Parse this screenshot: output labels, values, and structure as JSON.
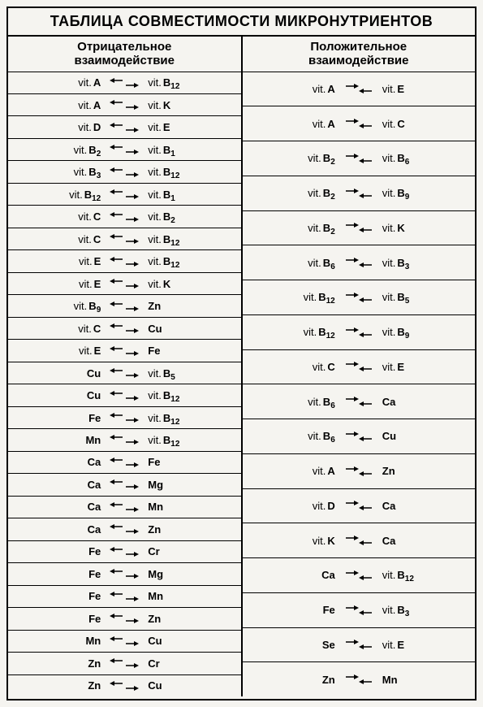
{
  "title": "ТАБЛИЦА СОВМЕСТИМОСТИ МИКРОНУТРИЕНТОВ",
  "colors": {
    "background": "#f5f4f0",
    "border": "#000000",
    "text": "#000000"
  },
  "columns": {
    "negative": {
      "header_line1": "Отрицательное",
      "header_line2": "взаимодействие",
      "arrow_type": "diverge",
      "rows": [
        {
          "left_prefix": "vit.",
          "left_main": "A",
          "left_sub": "",
          "right_prefix": "vit.",
          "right_main": "B",
          "right_sub": "12"
        },
        {
          "left_prefix": "vit.",
          "left_main": "A",
          "left_sub": "",
          "right_prefix": "vit.",
          "right_main": "K",
          "right_sub": ""
        },
        {
          "left_prefix": "vit.",
          "left_main": "D",
          "left_sub": "",
          "right_prefix": "vit.",
          "right_main": "E",
          "right_sub": ""
        },
        {
          "left_prefix": "vit.",
          "left_main": "B",
          "left_sub": "2",
          "right_prefix": "vit.",
          "right_main": "B",
          "right_sub": "1"
        },
        {
          "left_prefix": "vit.",
          "left_main": "B",
          "left_sub": "3",
          "right_prefix": "vit.",
          "right_main": "B",
          "right_sub": "12"
        },
        {
          "left_prefix": "vit.",
          "left_main": "B",
          "left_sub": "12",
          "right_prefix": "vit.",
          "right_main": "B",
          "right_sub": "1"
        },
        {
          "left_prefix": "vit.",
          "left_main": "C",
          "left_sub": "",
          "right_prefix": "vit.",
          "right_main": "B",
          "right_sub": "2"
        },
        {
          "left_prefix": "vit.",
          "left_main": "C",
          "left_sub": "",
          "right_prefix": "vit.",
          "right_main": "B",
          "right_sub": "12"
        },
        {
          "left_prefix": "vit.",
          "left_main": "E",
          "left_sub": "",
          "right_prefix": "vit.",
          "right_main": "B",
          "right_sub": "12"
        },
        {
          "left_prefix": "vit.",
          "left_main": "E",
          "left_sub": "",
          "right_prefix": "vit.",
          "right_main": "K",
          "right_sub": ""
        },
        {
          "left_prefix": "vit.",
          "left_main": "B",
          "left_sub": "9",
          "right_prefix": "",
          "right_main": "Zn",
          "right_sub": ""
        },
        {
          "left_prefix": "vit.",
          "left_main": "C",
          "left_sub": "",
          "right_prefix": "",
          "right_main": "Cu",
          "right_sub": ""
        },
        {
          "left_prefix": "vit.",
          "left_main": "E",
          "left_sub": "",
          "right_prefix": "",
          "right_main": "Fe",
          "right_sub": ""
        },
        {
          "left_prefix": "",
          "left_main": "Cu",
          "left_sub": "",
          "right_prefix": "vit.",
          "right_main": "B",
          "right_sub": "5"
        },
        {
          "left_prefix": "",
          "left_main": "Cu",
          "left_sub": "",
          "right_prefix": "vit.",
          "right_main": "B",
          "right_sub": "12"
        },
        {
          "left_prefix": "",
          "left_main": "Fe",
          "left_sub": "",
          "right_prefix": "vit.",
          "right_main": "B",
          "right_sub": "12"
        },
        {
          "left_prefix": "",
          "left_main": "Mn",
          "left_sub": "",
          "right_prefix": "vit.",
          "right_main": "B",
          "right_sub": "12"
        },
        {
          "left_prefix": "",
          "left_main": "Ca",
          "left_sub": "",
          "right_prefix": "",
          "right_main": "Fe",
          "right_sub": ""
        },
        {
          "left_prefix": "",
          "left_main": "Ca",
          "left_sub": "",
          "right_prefix": "",
          "right_main": "Mg",
          "right_sub": ""
        },
        {
          "left_prefix": "",
          "left_main": "Ca",
          "left_sub": "",
          "right_prefix": "",
          "right_main": "Mn",
          "right_sub": ""
        },
        {
          "left_prefix": "",
          "left_main": "Ca",
          "left_sub": "",
          "right_prefix": "",
          "right_main": "Zn",
          "right_sub": ""
        },
        {
          "left_prefix": "",
          "left_main": "Fe",
          "left_sub": "",
          "right_prefix": "",
          "right_main": "Cr",
          "right_sub": ""
        },
        {
          "left_prefix": "",
          "left_main": "Fe",
          "left_sub": "",
          "right_prefix": "",
          "right_main": "Mg",
          "right_sub": ""
        },
        {
          "left_prefix": "",
          "left_main": "Fe",
          "left_sub": "",
          "right_prefix": "",
          "right_main": "Mn",
          "right_sub": ""
        },
        {
          "left_prefix": "",
          "left_main": "Fe",
          "left_sub": "",
          "right_prefix": "",
          "right_main": "Zn",
          "right_sub": ""
        },
        {
          "left_prefix": "",
          "left_main": "Mn",
          "left_sub": "",
          "right_prefix": "",
          "right_main": "Cu",
          "right_sub": ""
        },
        {
          "left_prefix": "",
          "left_main": "Zn",
          "left_sub": "",
          "right_prefix": "",
          "right_main": "Cr",
          "right_sub": ""
        },
        {
          "left_prefix": "",
          "left_main": "Zn",
          "left_sub": "",
          "right_prefix": "",
          "right_main": "Cu",
          "right_sub": ""
        }
      ]
    },
    "positive": {
      "header_line1": "Положительное",
      "header_line2": "взаимодействие",
      "arrow_type": "converge",
      "rows": [
        {
          "left_prefix": "vit.",
          "left_main": "A",
          "left_sub": "",
          "right_prefix": "vit.",
          "right_main": "E",
          "right_sub": ""
        },
        {
          "left_prefix": "vit.",
          "left_main": "A",
          "left_sub": "",
          "right_prefix": "vit.",
          "right_main": "C",
          "right_sub": ""
        },
        {
          "left_prefix": "vit.",
          "left_main": "B",
          "left_sub": "2",
          "right_prefix": "vit.",
          "right_main": "B",
          "right_sub": "6"
        },
        {
          "left_prefix": "vit.",
          "left_main": "B",
          "left_sub": "2",
          "right_prefix": "vit.",
          "right_main": "B",
          "right_sub": "9"
        },
        {
          "left_prefix": "vit.",
          "left_main": "B",
          "left_sub": "2",
          "right_prefix": "vit.",
          "right_main": "K",
          "right_sub": ""
        },
        {
          "left_prefix": "vit.",
          "left_main": "B",
          "left_sub": "6",
          "right_prefix": "vit.",
          "right_main": "B",
          "right_sub": "3"
        },
        {
          "left_prefix": "vit.",
          "left_main": "B",
          "left_sub": "12",
          "right_prefix": "vit.",
          "right_main": "B",
          "right_sub": "5"
        },
        {
          "left_prefix": "vit.",
          "left_main": "B",
          "left_sub": "12",
          "right_prefix": "vit.",
          "right_main": "B",
          "right_sub": "9"
        },
        {
          "left_prefix": "vit.",
          "left_main": "C",
          "left_sub": "",
          "right_prefix": "vit.",
          "right_main": "E",
          "right_sub": ""
        },
        {
          "left_prefix": "vit.",
          "left_main": "B",
          "left_sub": "6",
          "right_prefix": "",
          "right_main": "Ca",
          "right_sub": ""
        },
        {
          "left_prefix": "vit.",
          "left_main": "B",
          "left_sub": "6",
          "right_prefix": "",
          "right_main": "Cu",
          "right_sub": ""
        },
        {
          "left_prefix": "vit.",
          "left_main": "A",
          "left_sub": "",
          "right_prefix": "",
          "right_main": "Zn",
          "right_sub": ""
        },
        {
          "left_prefix": "vit.",
          "left_main": "D",
          "left_sub": "",
          "right_prefix": "",
          "right_main": "Ca",
          "right_sub": ""
        },
        {
          "left_prefix": "vit.",
          "left_main": "K",
          "left_sub": "",
          "right_prefix": "",
          "right_main": "Ca",
          "right_sub": ""
        },
        {
          "left_prefix": "",
          "left_main": "Ca",
          "left_sub": "",
          "right_prefix": "vit.",
          "right_main": "B",
          "right_sub": "12"
        },
        {
          "left_prefix": "",
          "left_main": "Fe",
          "left_sub": "",
          "right_prefix": "vit.",
          "right_main": "B",
          "right_sub": "3"
        },
        {
          "left_prefix": "",
          "left_main": "Se",
          "left_sub": "",
          "right_prefix": "vit.",
          "right_main": "E",
          "right_sub": ""
        },
        {
          "left_prefix": "",
          "left_main": "Zn",
          "left_sub": "",
          "right_prefix": "",
          "right_main": "Mn",
          "right_sub": ""
        }
      ]
    }
  }
}
